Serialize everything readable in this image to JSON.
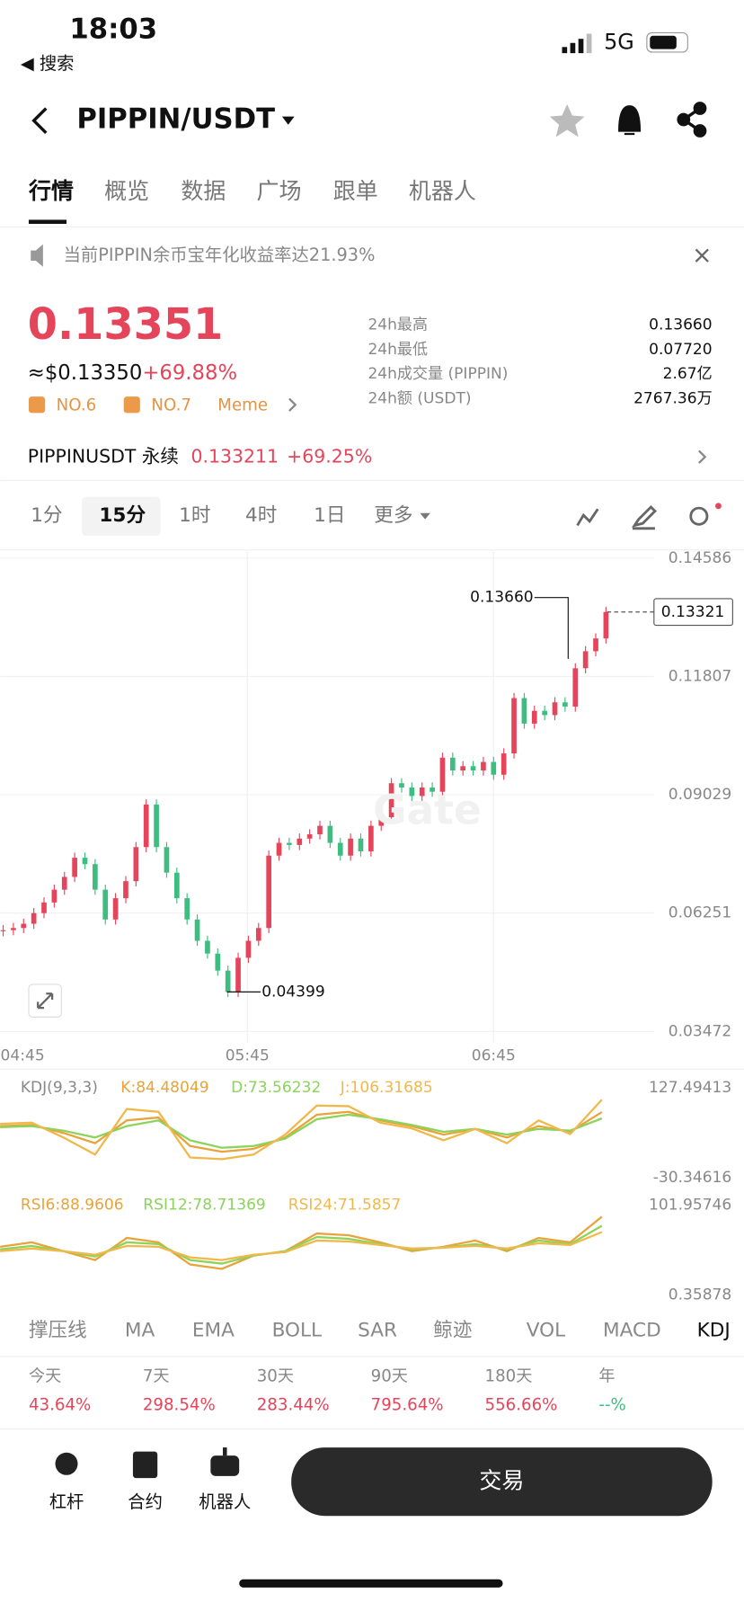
{
  "status": {
    "time": "18:03",
    "back": "◀ 搜索",
    "network": "5G"
  },
  "header": {
    "title": "PIPPIN/USDT"
  },
  "tabs": [
    "行情",
    "概览",
    "数据",
    "广场",
    "跟单",
    "机器人"
  ],
  "notice": "当前PIPPIN余币宝年化收益率达21.93%",
  "price": {
    "last": "0.13351",
    "usd": "≈$0.13350",
    "change": "+69.88%",
    "tags": [
      "NO.6",
      "NO.7",
      "Meme"
    ]
  },
  "stats": [
    {
      "label": "24h最高",
      "value": "0.13660"
    },
    {
      "label": "24h最低",
      "value": "0.07720"
    },
    {
      "label": "24h成交量 (PIPPIN)",
      "value": "2.67亿"
    },
    {
      "label": "24h额 (USDT)",
      "value": "2767.36万"
    }
  ],
  "perpetual": {
    "name": "PIPPINUSDT 永续",
    "price": "0.133211",
    "change": "+69.25%"
  },
  "intervals": [
    "1分",
    "15分",
    "1时",
    "4时",
    "1日",
    "更多"
  ],
  "chart_data": {
    "type": "candlestick",
    "up_color": "#e5455a",
    "down_color": "#3ebd80",
    "closes": [
      0.0585,
      0.059,
      0.06,
      0.0625,
      0.065,
      0.068,
      0.071,
      0.0755,
      0.074,
      0.068,
      0.061,
      0.066,
      0.07,
      0.078,
      0.088,
      0.078,
      0.072,
      0.066,
      0.061,
      0.056,
      0.053,
      0.049,
      0.044,
      0.052,
      0.056,
      0.059,
      0.076,
      0.079,
      0.0785,
      0.08,
      0.081,
      0.083,
      0.079,
      0.076,
      0.08,
      0.077,
      0.083,
      0.085,
      0.093,
      0.092,
      0.09,
      0.092,
      0.091,
      0.099,
      0.096,
      0.097,
      0.096,
      0.098,
      0.095,
      0.1,
      0.113,
      0.107,
      0.11,
      0.109,
      0.112,
      0.111,
      0.12,
      0.124,
      0.127,
      0.13321
    ],
    "ylim": [
      0.03472,
      0.14586
    ],
    "yticks": [
      0.14586,
      0.11807,
      0.09029,
      0.06251,
      0.03472
    ],
    "xticks": [
      "04:45",
      "05:45",
      "06:45"
    ],
    "high": {
      "value": 0.1366,
      "label": "0.13660"
    },
    "low": 0.04399,
    "current": 0.13321
  },
  "kdj": {
    "title": "KDJ(9,3,3)",
    "ylim": [
      -30.34616,
      127.49413
    ],
    "series": [
      {
        "name": "K:84.48049",
        "color": "#e8a33a",
        "values": [
          60,
          62,
          48,
          30,
          70,
          75,
          25,
          15,
          20,
          40,
          80,
          85,
          70,
          60,
          45,
          55,
          40,
          60,
          50,
          84.48049
        ]
      },
      {
        "name": "D:73.56232",
        "color": "#8bd35a",
        "values": [
          58,
          60,
          52,
          40,
          60,
          70,
          35,
          22,
          25,
          38,
          72,
          80,
          72,
          62,
          50,
          55,
          45,
          55,
          52,
          73.56232
        ]
      },
      {
        "name": "J:106.31685",
        "color": "#f0b84a",
        "values": [
          64,
          66,
          40,
          10,
          90,
          85,
          5,
          2,
          10,
          45,
          96,
          95,
          66,
          56,
          35,
          55,
          30,
          70,
          46,
          106.31685
        ]
      }
    ]
  },
  "rsi": {
    "ylim": [
      0.35878,
      101.95746
    ],
    "series": [
      {
        "name": "RSI6:88.9606",
        "color": "#e8a33a",
        "values": [
          55,
          60,
          50,
          40,
          65,
          60,
          35,
          30,
          45,
          50,
          70,
          68,
          60,
          50,
          55,
          62,
          50,
          65,
          60,
          88.9606
        ]
      },
      {
        "name": "RSI12:78.71369",
        "color": "#8bd35a",
        "values": [
          52,
          56,
          50,
          44,
          60,
          58,
          40,
          36,
          45,
          50,
          66,
          64,
          58,
          52,
          54,
          58,
          52,
          62,
          58,
          78.71369
        ]
      },
      {
        "name": "RSI24:71.5857",
        "color": "#f0b84a",
        "values": [
          50,
          53,
          50,
          46,
          56,
          55,
          43,
          40,
          46,
          49,
          62,
          61,
          57,
          53,
          54,
          56,
          53,
          59,
          57,
          71.5857
        ]
      }
    ]
  },
  "indicators": {
    "items": [
      "撑压线",
      "MA",
      "EMA",
      "BOLL",
      "SAR",
      "鲸迹",
      "VOL",
      "MACD",
      "KDJ"
    ],
    "active": "KDJ"
  },
  "performance": [
    {
      "label": "今天",
      "value": "43.64%",
      "color": "#e5455a"
    },
    {
      "label": "7天",
      "value": "298.54%",
      "color": "#e5455a"
    },
    {
      "label": "30天",
      "value": "283.44%",
      "color": "#e5455a"
    },
    {
      "label": "90天",
      "value": "795.64%",
      "color": "#e5455a"
    },
    {
      "label": "180天",
      "value": "556.66%",
      "color": "#e5455a"
    },
    {
      "label": "年",
      "value": "--%",
      "color": "#3ebd80"
    }
  ],
  "bottom": {
    "actions": [
      "杠杆",
      "合约",
      "机器人"
    ],
    "trade": "交易"
  }
}
